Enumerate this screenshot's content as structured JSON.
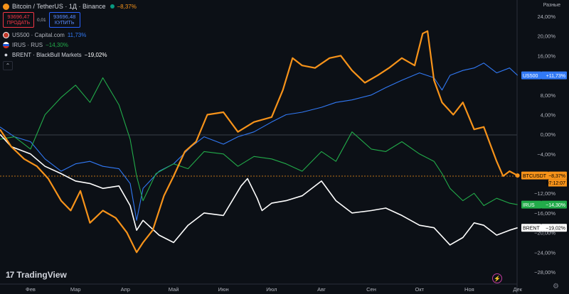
{
  "legend": {
    "main": {
      "title": "Bitcoin / TetherUS · 1Д · Binance",
      "change": "−8,37%",
      "color": "#f7931a"
    },
    "sell": {
      "price": "93696,47",
      "label": "ПРОДАТЬ"
    },
    "spread": "0,01",
    "buy": {
      "price": "93696,48",
      "label": "КУПИТЬ"
    },
    "items": [
      {
        "name": "US500 · Capital.com",
        "change": "11,73%",
        "color": "#3179f5",
        "icon": "us500-icon"
      },
      {
        "name": "IRUS · RUS",
        "change": "−14,30%",
        "color": "#22ab4a",
        "icon": "russia-flag-icon"
      },
      {
        "name": "BRENT · BlackBull Markets",
        "change": "−19,02%",
        "color": "#ffffff",
        "icon": "oil-drop-icon"
      }
    ]
  },
  "scale_mode": "Разные",
  "brand": "TradingView",
  "chart_data": {
    "type": "line",
    "y_unit": "%",
    "ylim": [
      -28,
      24
    ],
    "y_ticks": [
      "24,00%",
      "20,00%",
      "16,00%",
      "12,00%",
      "8,00%",
      "4,00%",
      "0,00%",
      "−4,00%",
      "−8,00%",
      "−12,00%",
      "−16,00%",
      "−20,00%",
      "−24,00%",
      "−28,00%"
    ],
    "x_ticks": [
      "Фев",
      "Мар",
      "Апр",
      "Май",
      "Июн",
      "Июл",
      "Авг",
      "Сен",
      "Окт",
      "Ноя",
      "Дек"
    ],
    "zero_line": true,
    "series": [
      {
        "name": "US500",
        "color": "#3179f5",
        "last_label": "+11,73%",
        "tag": "US500",
        "x": [
          "2025-01-13",
          "2025-01-22",
          "2025-02-01",
          "2025-02-10",
          "2025-02-20",
          "2025-03-01",
          "2025-03-10",
          "2025-03-18",
          "2025-03-28",
          "2025-04-04",
          "2025-04-08",
          "2025-04-12",
          "2025-04-22",
          "2025-05-01",
          "2025-05-12",
          "2025-05-20",
          "2025-06-01",
          "2025-06-10",
          "2025-06-20",
          "2025-07-01",
          "2025-07-10",
          "2025-07-20",
          "2025-08-01",
          "2025-08-10",
          "2025-08-20",
          "2025-09-01",
          "2025-09-10",
          "2025-09-20",
          "2025-10-01",
          "2025-10-10",
          "2025-10-15",
          "2025-10-20",
          "2025-10-28",
          "2025-11-04",
          "2025-11-10",
          "2025-11-18",
          "2025-11-26",
          "2025-12-01"
        ],
        "y": [
          1.5,
          -0.5,
          -1.5,
          -5.0,
          -7.5,
          -6.0,
          -5.5,
          -6.5,
          -7.0,
          -10.0,
          -17.5,
          -11.0,
          -7.5,
          -6.0,
          -2.5,
          -0.5,
          -2.0,
          -0.5,
          0.5,
          2.5,
          4.0,
          4.5,
          5.5,
          6.5,
          7.0,
          8.0,
          9.5,
          11.0,
          12.5,
          11.5,
          9.0,
          12.0,
          13.0,
          13.5,
          14.5,
          12.5,
          13.5,
          12.0
        ]
      },
      {
        "name": "IRUS",
        "color": "#22ab4a",
        "last_label": "−14,30%",
        "tag": "IRUS",
        "x": [
          "2025-01-13",
          "2025-01-22",
          "2025-02-01",
          "2025-02-10",
          "2025-02-20",
          "2025-03-01",
          "2025-03-10",
          "2025-03-18",
          "2025-03-28",
          "2025-04-04",
          "2025-04-08",
          "2025-04-12",
          "2025-04-20",
          "2025-05-01",
          "2025-05-10",
          "2025-05-20",
          "2025-06-01",
          "2025-06-10",
          "2025-06-20",
          "2025-07-01",
          "2025-07-10",
          "2025-07-20",
          "2025-08-01",
          "2025-08-10",
          "2025-08-20",
          "2025-09-01",
          "2025-09-10",
          "2025-09-20",
          "2025-10-01",
          "2025-10-10",
          "2025-10-15",
          "2025-10-20",
          "2025-10-28",
          "2025-11-04",
          "2025-11-10",
          "2025-11-18",
          "2025-11-26",
          "2025-12-01"
        ],
        "y": [
          -1.0,
          -0.5,
          -3.0,
          4.0,
          7.5,
          10.0,
          6.5,
          11.5,
          6.0,
          -1.0,
          -8.5,
          -13.5,
          -8.0,
          -6.0,
          -7.0,
          -3.5,
          -4.0,
          -6.5,
          -4.5,
          -5.0,
          -6.0,
          -7.5,
          -3.5,
          -5.5,
          0.5,
          -3.0,
          -3.5,
          -1.5,
          -4.0,
          -5.5,
          -8.0,
          -11.0,
          -13.5,
          -12.0,
          -14.5,
          -13.0,
          -14.0,
          -14.3
        ]
      },
      {
        "name": "BRENT",
        "color": "#ffffff",
        "last_label": "−19,02%",
        "tag": "BRENT",
        "x": [
          "2025-01-13",
          "2025-01-20",
          "2025-02-01",
          "2025-02-10",
          "2025-02-20",
          "2025-03-01",
          "2025-03-10",
          "2025-03-18",
          "2025-03-28",
          "2025-04-04",
          "2025-04-08",
          "2025-04-12",
          "2025-04-22",
          "2025-05-01",
          "2025-05-10",
          "2025-05-20",
          "2025-06-01",
          "2025-06-12",
          "2025-06-16",
          "2025-06-22",
          "2025-06-25",
          "2025-07-01",
          "2025-07-10",
          "2025-07-20",
          "2025-08-01",
          "2025-08-10",
          "2025-08-20",
          "2025-09-01",
          "2025-09-10",
          "2025-09-20",
          "2025-10-01",
          "2025-10-10",
          "2025-10-20",
          "2025-10-28",
          "2025-11-04",
          "2025-11-10",
          "2025-11-18",
          "2025-11-26",
          "2025-12-01"
        ],
        "y": [
          0.0,
          -2.5,
          -4.0,
          -6.5,
          -8.0,
          -9.5,
          -10.0,
          -11.0,
          -10.5,
          -14.5,
          -19.5,
          -17.5,
          -20.5,
          -22.0,
          -18.5,
          -16.0,
          -16.5,
          -10.5,
          -9.0,
          -13.0,
          -15.5,
          -14.0,
          -13.5,
          -12.5,
          -9.5,
          -13.5,
          -16.0,
          -15.5,
          -15.0,
          -16.5,
          -18.5,
          -19.0,
          -22.5,
          -21.0,
          -18.0,
          -18.5,
          -20.5,
          -19.5,
          -19.0
        ]
      },
      {
        "name": "BTCUSDT",
        "color": "#f7931a",
        "last_label": "−8,37%",
        "tag": "BTCUSDT",
        "countdown": "07:12:07",
        "x": [
          "2025-01-13",
          "2025-01-20",
          "2025-01-28",
          "2025-02-05",
          "2025-02-12",
          "2025-02-20",
          "2025-02-26",
          "2025-03-04",
          "2025-03-10",
          "2025-03-18",
          "2025-03-26",
          "2025-04-02",
          "2025-04-08",
          "2025-04-12",
          "2025-04-18",
          "2025-04-25",
          "2025-05-01",
          "2025-05-08",
          "2025-05-15",
          "2025-05-22",
          "2025-06-01",
          "2025-06-10",
          "2025-06-20",
          "2025-07-01",
          "2025-07-08",
          "2025-07-14",
          "2025-07-20",
          "2025-07-28",
          "2025-08-06",
          "2025-08-13",
          "2025-08-20",
          "2025-08-28",
          "2025-09-05",
          "2025-09-12",
          "2025-09-20",
          "2025-09-28",
          "2025-10-03",
          "2025-10-06",
          "2025-10-10",
          "2025-10-15",
          "2025-10-22",
          "2025-10-28",
          "2025-11-04",
          "2025-11-10",
          "2025-11-14",
          "2025-11-18",
          "2025-11-22",
          "2025-11-26",
          "2025-12-01"
        ],
        "y": [
          1.0,
          -2.5,
          -5.0,
          -6.5,
          -9.0,
          -13.5,
          -15.5,
          -11.5,
          -18.0,
          -15.5,
          -17.0,
          -20.0,
          -24.0,
          -22.0,
          -19.5,
          -12.5,
          -8.5,
          -3.5,
          -1.5,
          4.0,
          4.5,
          0.5,
          2.5,
          3.5,
          9.0,
          15.5,
          14.0,
          13.5,
          15.5,
          16.0,
          13.0,
          10.5,
          12.0,
          13.5,
          15.5,
          14.0,
          20.5,
          21.0,
          11.0,
          6.5,
          4.0,
          6.5,
          1.0,
          1.5,
          -2.0,
          -5.5,
          -8.5,
          -7.5,
          -8.37
        ]
      }
    ]
  }
}
